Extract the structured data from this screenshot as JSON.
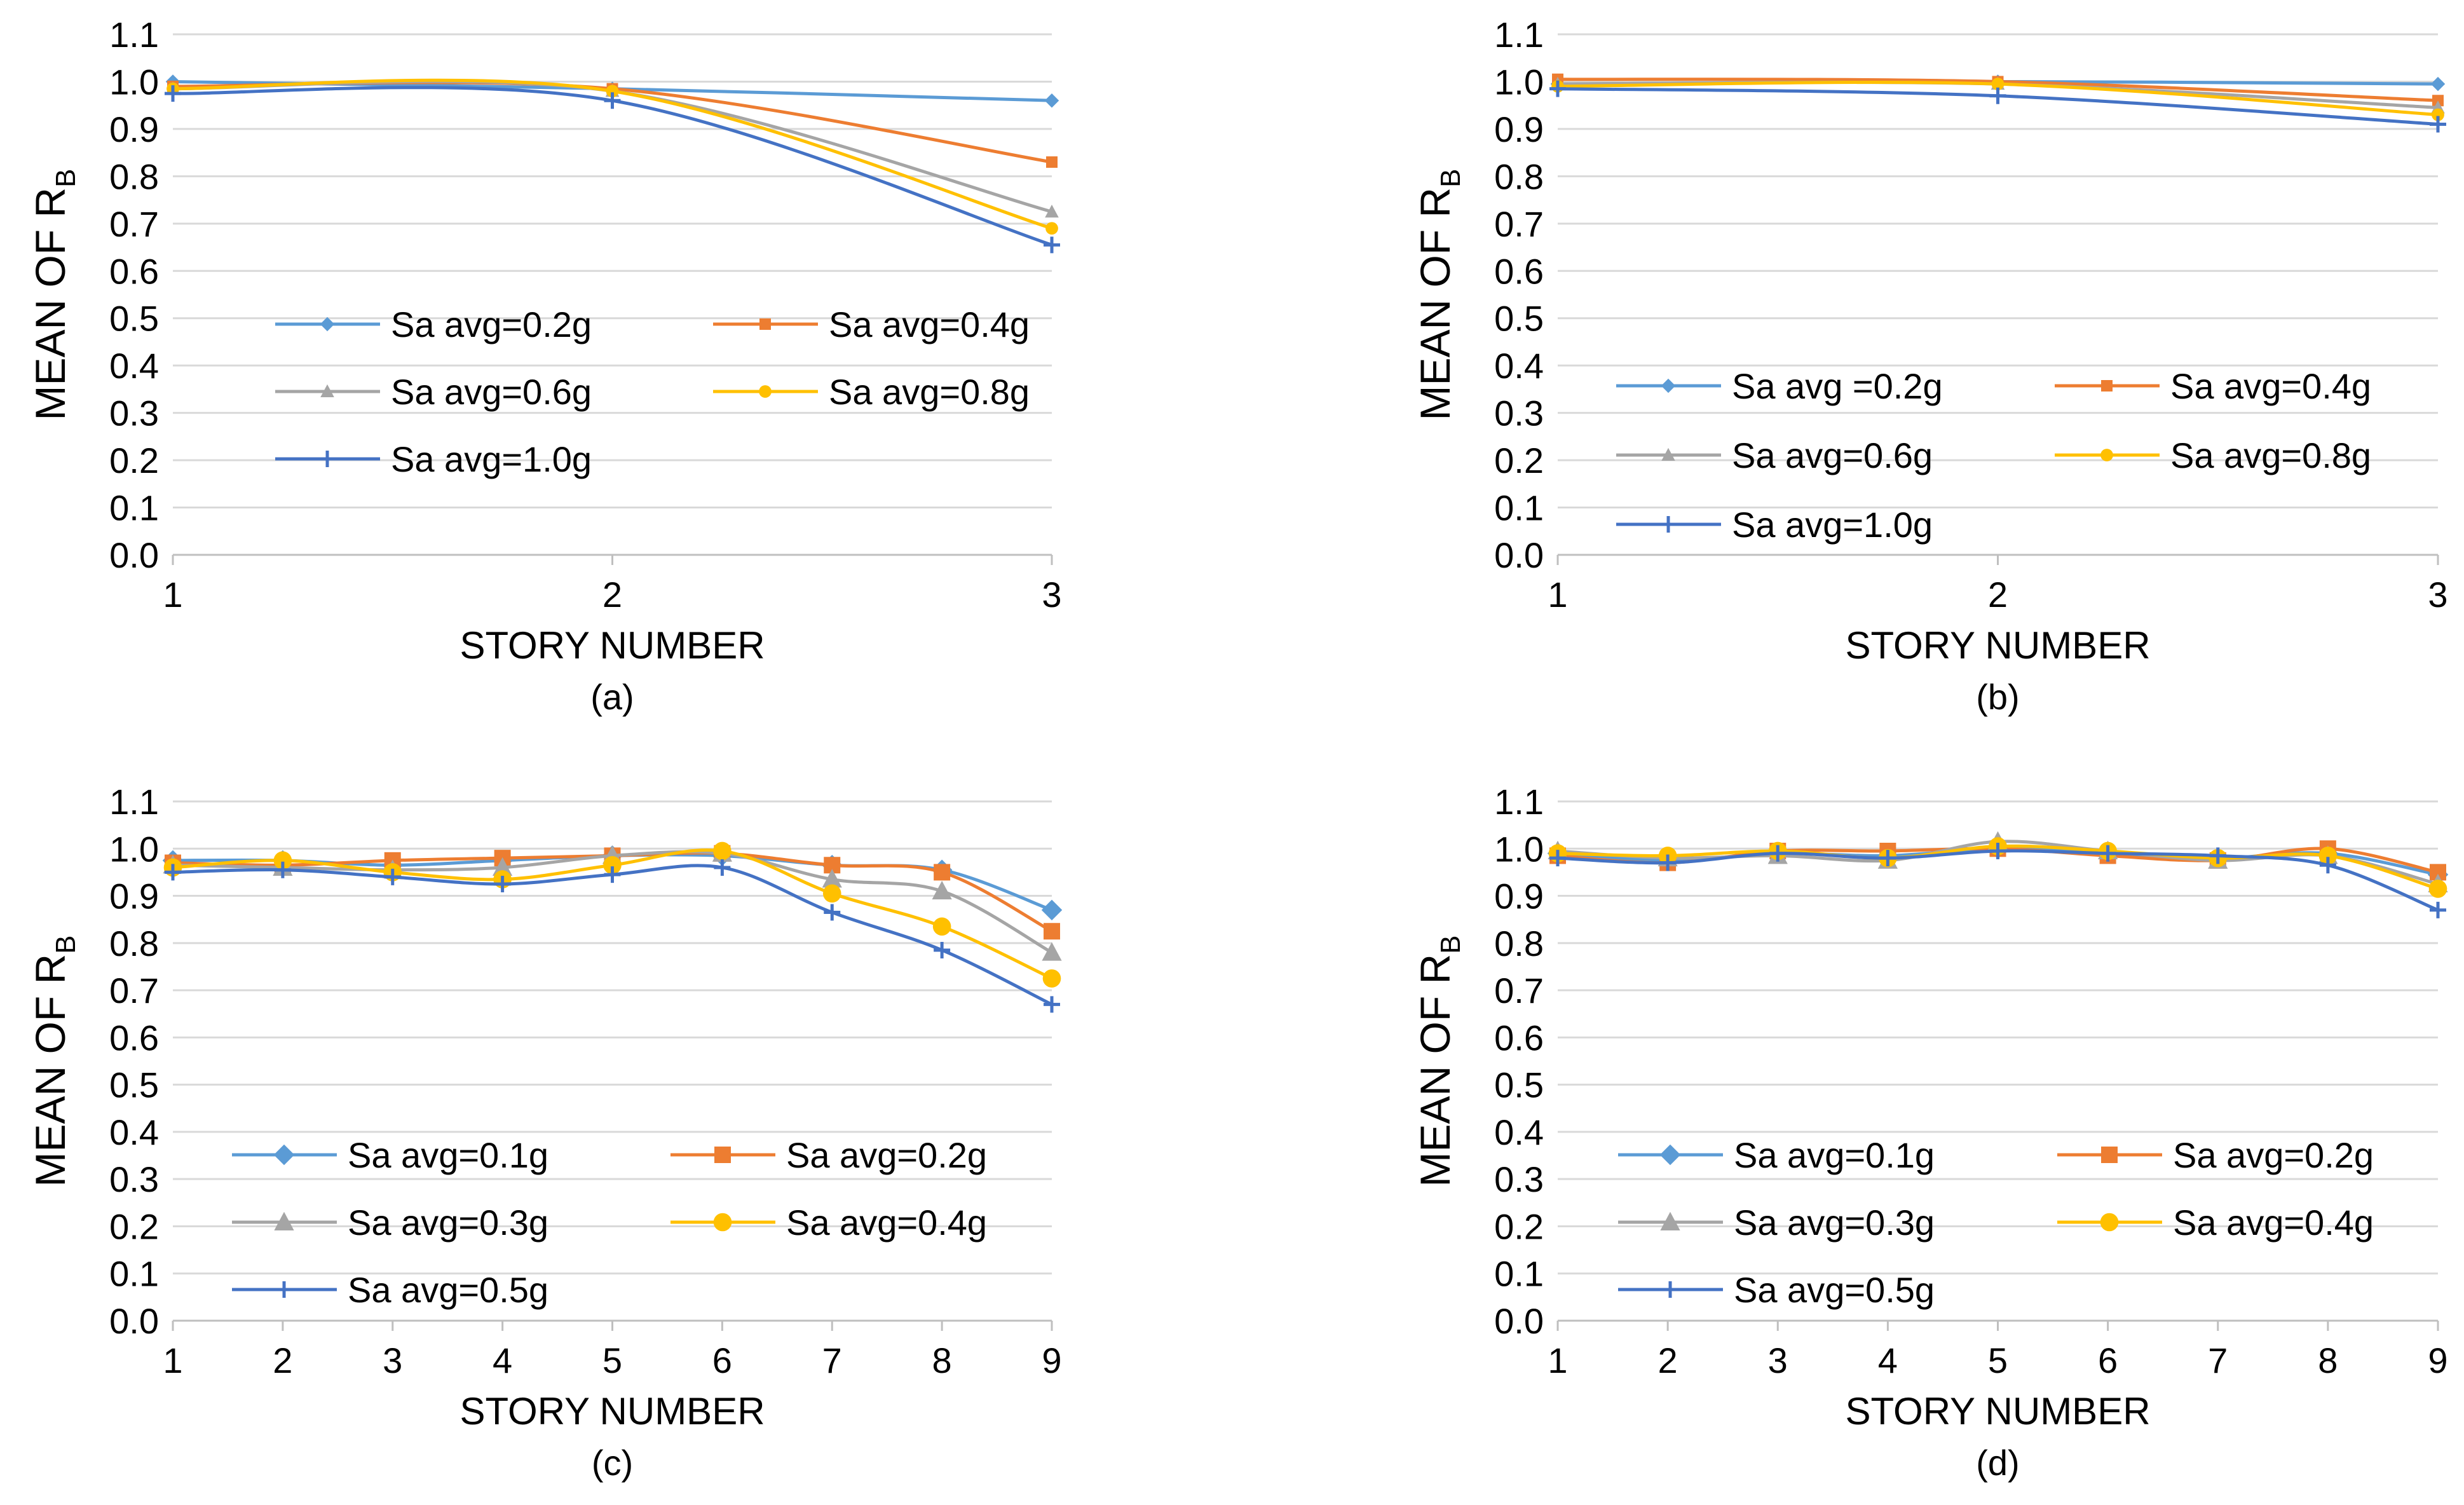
{
  "colors": {
    "s1": "#5B9BD5",
    "s2": "#ED7D31",
    "s3": "#A5A5A5",
    "s4": "#FFC000",
    "s5": "#4472C4",
    "grid": "#D9D9D9",
    "axis": "#BFBFBF"
  },
  "chart_data": [
    {
      "type": "line",
      "panel_label": "(a)",
      "xlabel": "STORY NUMBER",
      "ylabel": "MEAN OF  R",
      "ylabel_sub": "B",
      "ylim": [
        0,
        1.1
      ],
      "yticks": [
        "0.0",
        "0.1",
        "0.2",
        "0.3",
        "0.4",
        "0.5",
        "0.6",
        "0.7",
        "0.8",
        "0.9",
        "1.0",
        "1.1"
      ],
      "categories": [
        "1",
        "2",
        "3"
      ],
      "legend_position": "center-left",
      "series": [
        {
          "name": "Sa avg=0.2g",
          "marker": "diamond-small",
          "values": [
            1.0,
            0.985,
            0.96
          ]
        },
        {
          "name": "Sa avg=0.4g",
          "marker": "square-small",
          "values": [
            0.99,
            0.985,
            0.83
          ]
        },
        {
          "name": "Sa avg=0.6g",
          "marker": "triangle-small",
          "values": [
            0.985,
            0.98,
            0.725
          ]
        },
        {
          "name": "Sa avg=0.8g",
          "marker": "circle-small",
          "values": [
            0.985,
            0.98,
            0.69
          ]
        },
        {
          "name": "Sa avg=1.0g",
          "marker": "plus",
          "values": [
            0.975,
            0.96,
            0.655
          ]
        }
      ]
    },
    {
      "type": "line",
      "panel_label": "(b)",
      "xlabel": "STORY NUMBER",
      "ylabel": "MEAN OF R",
      "ylabel_sub": "B",
      "ylim": [
        0,
        1.1
      ],
      "yticks": [
        "0.0",
        "0.1",
        "0.2",
        "0.3",
        "0.4",
        "0.5",
        "0.6",
        "0.7",
        "0.8",
        "0.9",
        "1.0",
        "1.1"
      ],
      "categories": [
        "1",
        "2",
        "3"
      ],
      "legend_position": "center-left",
      "series": [
        {
          "name": "Sa avg =0.2g",
          "marker": "diamond-small",
          "values": [
            0.995,
            1.0,
            0.995
          ]
        },
        {
          "name": "Sa avg=0.4g",
          "marker": "square-small",
          "values": [
            1.005,
            1.0,
            0.96
          ]
        },
        {
          "name": "Sa avg=0.6g",
          "marker": "triangle-small",
          "values": [
            0.995,
            0.995,
            0.945
          ]
        },
        {
          "name": "Sa avg=0.8g",
          "marker": "circle-small",
          "values": [
            0.99,
            0.995,
            0.93
          ]
        },
        {
          "name": "Sa avg=1.0g",
          "marker": "plus",
          "values": [
            0.985,
            0.97,
            0.91
          ]
        }
      ]
    },
    {
      "type": "line",
      "panel_label": "(c)",
      "xlabel": "STORY NUMBER",
      "ylabel": "MEAN OF  R",
      "ylabel_sub": "B",
      "ylim": [
        0,
        1.1
      ],
      "yticks": [
        "0.0",
        "0.1",
        "0.2",
        "0.3",
        "0.4",
        "0.5",
        "0.6",
        "0.7",
        "0.8",
        "0.9",
        "1.0",
        "1.1"
      ],
      "categories": [
        "1",
        "2",
        "3",
        "4",
        "5",
        "6",
        "7",
        "8",
        "9"
      ],
      "legend_position": "lower-left",
      "series": [
        {
          "name": "Sa avg=0.1g",
          "marker": "diamond",
          "values": [
            0.975,
            0.975,
            0.965,
            0.975,
            0.985,
            0.985,
            0.965,
            0.955,
            0.87
          ]
        },
        {
          "name": "Sa avg=0.2g",
          "marker": "square",
          "values": [
            0.97,
            0.965,
            0.975,
            0.98,
            0.985,
            0.99,
            0.965,
            0.95,
            0.825
          ]
        },
        {
          "name": "Sa avg=0.3g",
          "marker": "triangle",
          "values": [
            0.965,
            0.96,
            0.955,
            0.96,
            0.985,
            0.99,
            0.935,
            0.91,
            0.78
          ]
        },
        {
          "name": "Sa avg=0.4g",
          "marker": "circle",
          "values": [
            0.96,
            0.975,
            0.95,
            0.935,
            0.965,
            0.995,
            0.905,
            0.835,
            0.725
          ]
        },
        {
          "name": "Sa avg=0.5g",
          "marker": "plus",
          "values": [
            0.95,
            0.955,
            0.94,
            0.925,
            0.945,
            0.96,
            0.865,
            0.785,
            0.67
          ]
        }
      ]
    },
    {
      "type": "line",
      "panel_label": "(d)",
      "xlabel": "STORY NUMBER",
      "ylabel": "MEAN OF R",
      "ylabel_sub": "B",
      "ylim": [
        0,
        1.1
      ],
      "yticks": [
        "0.0",
        "0.1",
        "0.2",
        "0.3",
        "0.4",
        "0.5",
        "0.6",
        "0.7",
        "0.8",
        "0.9",
        "1.0",
        "1.1"
      ],
      "categories": [
        "1",
        "2",
        "3",
        "4",
        "5",
        "6",
        "7",
        "8",
        "9"
      ],
      "legend_position": "lower-left",
      "series": [
        {
          "name": "Sa avg=0.1g",
          "marker": "diamond",
          "values": [
            0.99,
            0.975,
            0.99,
            0.985,
            1.0,
            0.99,
            0.98,
            0.99,
            0.945
          ]
        },
        {
          "name": "Sa avg=0.2g",
          "marker": "square",
          "values": [
            0.985,
            0.97,
            0.995,
            0.995,
            1.0,
            0.985,
            0.975,
            1.0,
            0.95
          ]
        },
        {
          "name": "Sa avg=0.3g",
          "marker": "triangle",
          "values": [
            0.995,
            0.98,
            0.985,
            0.975,
            1.015,
            0.995,
            0.975,
            0.985,
            0.925
          ]
        },
        {
          "name": "Sa avg=0.4g",
          "marker": "circle",
          "values": [
            0.99,
            0.985,
            0.995,
            0.98,
            1.005,
            0.995,
            0.98,
            0.985,
            0.915
          ]
        },
        {
          "name": "Sa avg=0.5g",
          "marker": "plus",
          "values": [
            0.98,
            0.97,
            0.99,
            0.98,
            0.995,
            0.99,
            0.985,
            0.965,
            0.87
          ]
        }
      ]
    }
  ]
}
